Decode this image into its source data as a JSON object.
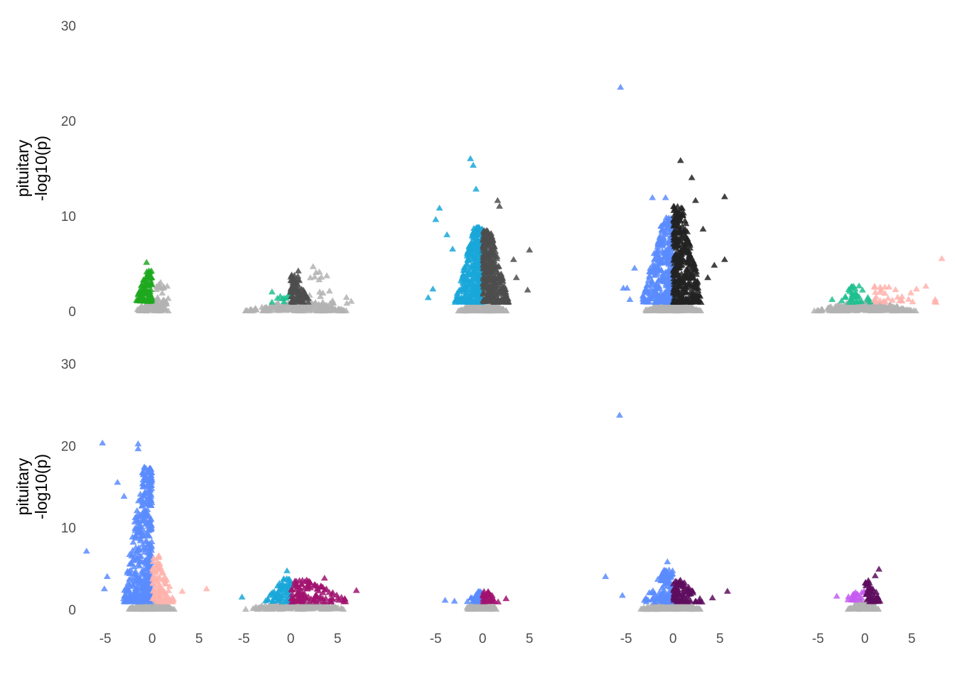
{
  "y_axis": {
    "title_line1": "pituitary",
    "title_line2": "-log10(p)",
    "ticks": [
      0,
      10,
      20,
      30
    ],
    "tick_labels": [
      "0",
      "10",
      "20",
      "30"
    ]
  },
  "colors": {
    "not_significant": "#b3b3b3",
    "green": "#1fa81f",
    "teal": "#1fbf8f",
    "cyan": "#1aa7d9",
    "dark_gray": "#4d4d4d",
    "near_black": "#222222",
    "blue": "#5b8cff",
    "pink": "#ffb3ad",
    "magenta": "#a1136e",
    "purple_dark": "#5e0d5e",
    "violet": "#c65cf2",
    "tick_text": "#4d4d4d"
  },
  "chart_data": [
    {
      "type": "scatter",
      "row": 1,
      "col": 1,
      "xlim": [
        -6,
        6
      ],
      "ylim": [
        0,
        30
      ],
      "x_ticks": [],
      "x_tick_labels": [],
      "grid": false,
      "marker": "triangle",
      "groups": [
        {
          "color_key": "green",
          "x_range": [
            -1.8,
            -0.05
          ],
          "y_range": [
            1.0,
            4.3
          ],
          "n": 90,
          "outliers": [
            {
              "x": -0.6,
              "y": 5.1
            }
          ]
        },
        {
          "color_key": "not_significant",
          "x_range": [
            -0.4,
            2.0
          ],
          "y_range": [
            0.6,
            3.0
          ],
          "n": 30,
          "outliers": [
            {
              "x": 1.6,
              "y": 2.6
            }
          ]
        },
        {
          "color_key": "not_significant",
          "x_range": [
            -1.8,
            1.8
          ],
          "y_range": [
            0.0,
            0.9
          ],
          "n": 120
        }
      ]
    },
    {
      "type": "scatter",
      "row": 1,
      "col": 2,
      "xlim": [
        -6,
        8
      ],
      "ylim": [
        0,
        30
      ],
      "x_ticks": [],
      "x_tick_labels": [],
      "grid": false,
      "marker": "triangle",
      "groups": [
        {
          "color_key": "teal",
          "x_range": [
            -2.2,
            -0.1
          ],
          "y_range": [
            0.9,
            1.8
          ],
          "n": 10,
          "outliers": [
            {
              "x": -2.0,
              "y": 2.0
            }
          ]
        },
        {
          "color_key": "dark_gray",
          "x_range": [
            0.0,
            2.2
          ],
          "y_range": [
            0.9,
            3.9
          ],
          "n": 80,
          "outliers": [
            {
              "x": 0.8,
              "y": 4.2
            }
          ]
        },
        {
          "color_key": "not_significant",
          "x_range": [
            2.0,
            7.0
          ],
          "y_range": [
            0.8,
            4.8
          ],
          "n": 22
        },
        {
          "color_key": "not_significant",
          "x_range": [
            -5.0,
            6.5
          ],
          "y_range": [
            0.0,
            0.9
          ],
          "n": 200
        }
      ]
    },
    {
      "type": "scatter",
      "row": 1,
      "col": 3,
      "xlim": [
        -6,
        6
      ],
      "ylim": [
        0,
        30
      ],
      "x_ticks": [],
      "x_tick_labels": [],
      "grid": false,
      "marker": "triangle",
      "groups": [
        {
          "color_key": "cyan",
          "x_range": [
            -3.0,
            -0.05
          ],
          "y_range": [
            0.9,
            8.8
          ],
          "n": 380,
          "outliers": [
            {
              "x": -1.3,
              "y": 16.0
            },
            {
              "x": -1.0,
              "y": 15.3
            },
            {
              "x": -0.7,
              "y": 12.8
            },
            {
              "x": -4.6,
              "y": 10.8
            },
            {
              "x": -5.0,
              "y": 9.6
            },
            {
              "x": -3.8,
              "y": 8.0
            },
            {
              "x": -5.3,
              "y": 2.3
            },
            {
              "x": -5.8,
              "y": 1.4
            },
            {
              "x": -3.2,
              "y": 6.5
            }
          ]
        },
        {
          "color_key": "dark_gray",
          "x_range": [
            0.05,
            2.8
          ],
          "y_range": [
            0.9,
            8.5
          ],
          "n": 340,
          "outliers": [
            {
              "x": 1.6,
              "y": 11.6
            },
            {
              "x": 1.8,
              "y": 11.0
            },
            {
              "x": 5.0,
              "y": 6.4
            },
            {
              "x": 4.8,
              "y": 2.2
            },
            {
              "x": 3.3,
              "y": 5.4
            },
            {
              "x": 3.6,
              "y": 3.5
            }
          ]
        },
        {
          "color_key": "not_significant",
          "x_range": [
            -2.6,
            2.6
          ],
          "y_range": [
            0.0,
            0.9
          ],
          "n": 260
        }
      ]
    },
    {
      "type": "scatter",
      "row": 1,
      "col": 4,
      "xlim": [
        -6,
        6
      ],
      "ylim": [
        0,
        30
      ],
      "x_ticks": [],
      "x_tick_labels": [],
      "grid": false,
      "marker": "triangle",
      "groups": [
        {
          "color_key": "blue",
          "x_range": [
            -3.4,
            -0.05
          ],
          "y_range": [
            0.9,
            9.8
          ],
          "n": 330,
          "outliers": [
            {
              "x": -5.6,
              "y": 23.5
            },
            {
              "x": -2.2,
              "y": 11.9
            },
            {
              "x": -0.8,
              "y": 11.9
            },
            {
              "x": -5.3,
              "y": 2.4
            },
            {
              "x": -4.9,
              "y": 2.4
            },
            {
              "x": -4.6,
              "y": 1.2
            },
            {
              "x": -4.1,
              "y": 4.5
            }
          ]
        },
        {
          "color_key": "near_black",
          "x_range": [
            0.05,
            3.2
          ],
          "y_range": [
            0.9,
            11.0
          ],
          "n": 360,
          "outliers": [
            {
              "x": 0.8,
              "y": 15.8
            },
            {
              "x": 2.0,
              "y": 14.0
            },
            {
              "x": 5.5,
              "y": 12.0
            },
            {
              "x": 2.4,
              "y": 11.6
            },
            {
              "x": 3.2,
              "y": 8.6
            },
            {
              "x": 5.5,
              "y": 5.4
            },
            {
              "x": 4.4,
              "y": 4.8
            },
            {
              "x": 3.7,
              "y": 3.5
            }
          ]
        },
        {
          "color_key": "not_significant",
          "x_range": [
            -3.2,
            3.0
          ],
          "y_range": [
            0.0,
            0.9
          ],
          "n": 260
        }
      ]
    },
    {
      "type": "scatter",
      "row": 1,
      "col": 5,
      "xlim": [
        -6,
        8
      ],
      "ylim": [
        0,
        30
      ],
      "x_ticks": [],
      "x_tick_labels": [],
      "grid": false,
      "marker": "triangle",
      "groups": [
        {
          "color_key": "teal",
          "x_range": [
            -2.6,
            0.7
          ],
          "y_range": [
            0.9,
            2.7
          ],
          "n": 35,
          "outliers": [
            {
              "x": -3.5,
              "y": 1.2
            }
          ]
        },
        {
          "color_key": "pink",
          "x_range": [
            1.0,
            7.8
          ],
          "y_range": [
            0.9,
            2.6
          ],
          "n": 30,
          "outliers": [
            {
              "x": 8.2,
              "y": 5.5
            },
            {
              "x": 6.5,
              "y": 2.6
            },
            {
              "x": 5.5,
              "y": 2.3
            },
            {
              "x": 7.5,
              "y": 1.2
            }
          ]
        },
        {
          "color_key": "not_significant",
          "x_range": [
            -5.5,
            5.5
          ],
          "y_range": [
            0.0,
            0.9
          ],
          "n": 230
        }
      ]
    },
    {
      "type": "scatter",
      "row": 2,
      "col": 1,
      "xlim": [
        -6,
        6
      ],
      "ylim": [
        0,
        30
      ],
      "x_ticks": [
        -5,
        0,
        5
      ],
      "x_tick_labels": [
        "-5",
        "0",
        "5"
      ],
      "grid": false,
      "marker": "triangle",
      "groups": [
        {
          "color_key": "blue",
          "x_range": [
            -3.2,
            -0.05
          ],
          "y_range": [
            0.9,
            17.5
          ],
          "n": 430,
          "outliers": [
            {
              "x": -5.3,
              "y": 20.3
            },
            {
              "x": -1.5,
              "y": 20.2
            },
            {
              "x": -1.5,
              "y": 19.6
            },
            {
              "x": -7.0,
              "y": 7.1
            },
            {
              "x": -4.8,
              "y": 4.0
            },
            {
              "x": -5.1,
              "y": 2.5
            },
            {
              "x": -3.7,
              "y": 15.5
            },
            {
              "x": -3.0,
              "y": 13.8
            }
          ]
        },
        {
          "color_key": "pink",
          "x_range": [
            0.05,
            2.4
          ],
          "y_range": [
            0.9,
            6.7
          ],
          "n": 110,
          "outliers": [
            {
              "x": 5.8,
              "y": 2.5
            },
            {
              "x": 3.2,
              "y": 2.2
            }
          ]
        },
        {
          "color_key": "not_significant",
          "x_range": [
            -2.6,
            2.4
          ],
          "y_range": [
            0.0,
            0.9
          ],
          "n": 200
        }
      ]
    },
    {
      "type": "scatter",
      "row": 2,
      "col": 2,
      "xlim": [
        -6,
        6
      ],
      "ylim": [
        0,
        30
      ],
      "x_ticks": [
        -5,
        0,
        5
      ],
      "x_tick_labels": [
        "-5",
        "0",
        "5"
      ],
      "grid": false,
      "marker": "triangle",
      "groups": [
        {
          "color_key": "cyan",
          "x_range": [
            -2.8,
            -0.05
          ],
          "y_range": [
            0.9,
            3.8
          ],
          "n": 70,
          "outliers": [
            {
              "x": -0.4,
              "y": 4.7
            },
            {
              "x": -5.2,
              "y": 1.5
            }
          ]
        },
        {
          "color_key": "magenta",
          "x_range": [
            0.05,
            6.5
          ],
          "y_range": [
            0.9,
            3.6
          ],
          "n": 110,
          "outliers": [
            {
              "x": 3.6,
              "y": 3.8
            },
            {
              "x": 7.0,
              "y": 2.3
            }
          ]
        },
        {
          "color_key": "not_significant",
          "x_range": [
            -5.0,
            6.0
          ],
          "y_range": [
            0.0,
            0.9
          ],
          "n": 220
        }
      ]
    },
    {
      "type": "scatter",
      "row": 2,
      "col": 3,
      "xlim": [
        -6,
        6
      ],
      "ylim": [
        0,
        30
      ],
      "x_ticks": [
        -5,
        0,
        5
      ],
      "x_tick_labels": [
        "-5",
        "0",
        "5"
      ],
      "grid": false,
      "marker": "triangle",
      "groups": [
        {
          "color_key": "blue",
          "x_range": [
            -1.7,
            -0.05
          ],
          "y_range": [
            0.9,
            2.2
          ],
          "n": 35,
          "outliers": [
            {
              "x": -4.0,
              "y": 1.1
            },
            {
              "x": -3.0,
              "y": 1.0
            }
          ]
        },
        {
          "color_key": "magenta",
          "x_range": [
            0.05,
            1.8
          ],
          "y_range": [
            0.9,
            2.2
          ],
          "n": 30,
          "outliers": [
            {
              "x": 2.5,
              "y": 1.3
            }
          ]
        },
        {
          "color_key": "not_significant",
          "x_range": [
            -2.0,
            1.8
          ],
          "y_range": [
            0.0,
            0.9
          ],
          "n": 140
        }
      ]
    },
    {
      "type": "scatter",
      "row": 2,
      "col": 4,
      "xlim": [
        -6,
        6
      ],
      "ylim": [
        0,
        30
      ],
      "x_ticks": [
        -5,
        0,
        5
      ],
      "x_tick_labels": [
        "-5",
        "0",
        "5"
      ],
      "grid": false,
      "marker": "triangle",
      "groups": [
        {
          "color_key": "blue",
          "x_range": [
            -3.3,
            -0.05
          ],
          "y_range": [
            0.9,
            4.8
          ],
          "n": 110,
          "outliers": [
            {
              "x": -5.7,
              "y": 23.7
            },
            {
              "x": -0.6,
              "y": 5.8
            },
            {
              "x": -7.2,
              "y": 4.0
            },
            {
              "x": -5.4,
              "y": 1.7
            }
          ]
        },
        {
          "color_key": "purple_dark",
          "x_range": [
            0.05,
            3.2
          ],
          "y_range": [
            0.9,
            3.6
          ],
          "n": 80,
          "outliers": [
            {
              "x": 5.8,
              "y": 2.2
            },
            {
              "x": 4.2,
              "y": 1.4
            }
          ]
        },
        {
          "color_key": "not_significant",
          "x_range": [
            -3.5,
            3.0
          ],
          "y_range": [
            0.0,
            0.9
          ],
          "n": 200
        }
      ]
    },
    {
      "type": "scatter",
      "row": 2,
      "col": 5,
      "xlim": [
        -6,
        6
      ],
      "ylim": [
        0,
        30
      ],
      "x_ticks": [
        -5,
        0,
        5
      ],
      "x_tick_labels": [
        "-5",
        "0",
        "5"
      ],
      "grid": false,
      "marker": "triangle",
      "groups": [
        {
          "color_key": "violet",
          "x_range": [
            -2.7,
            -0.05
          ],
          "y_range": [
            1.1,
            2.2
          ],
          "n": 25,
          "outliers": [
            {
              "x": -3.0,
              "y": 1.6
            }
          ]
        },
        {
          "color_key": "purple_dark",
          "x_range": [
            0.05,
            1.8
          ],
          "y_range": [
            0.9,
            3.6
          ],
          "n": 45,
          "outliers": [
            {
              "x": 1.5,
              "y": 4.9
            },
            {
              "x": 1.1,
              "y": 4.1
            }
          ]
        },
        {
          "color_key": "not_significant",
          "x_range": [
            -1.8,
            1.6
          ],
          "y_range": [
            0.0,
            0.9
          ],
          "n": 110
        }
      ]
    }
  ]
}
